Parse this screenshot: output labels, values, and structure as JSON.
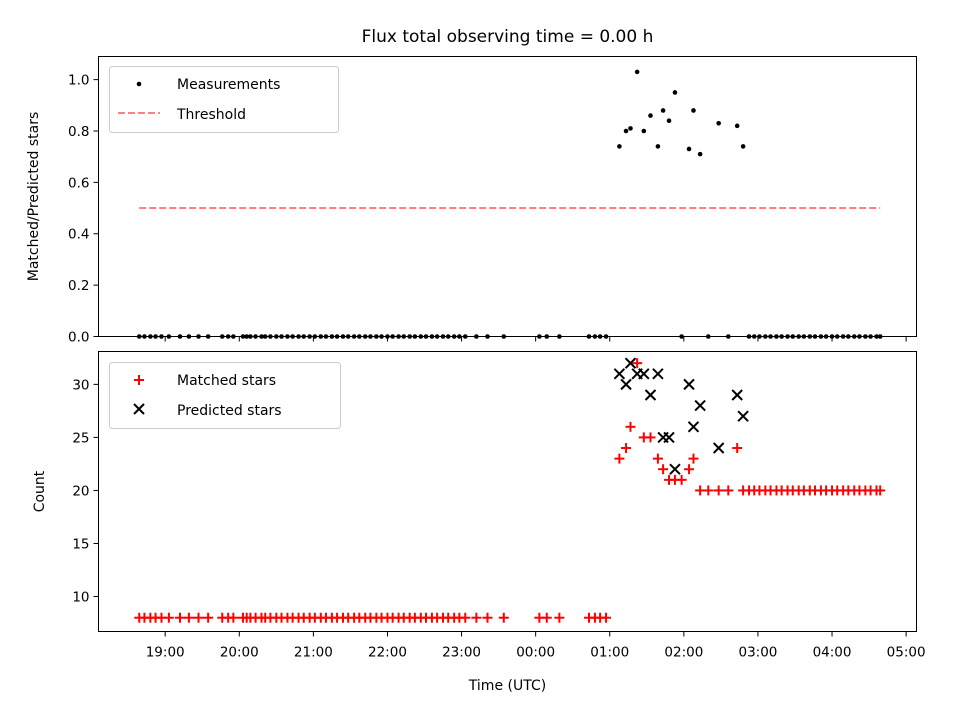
{
  "chart_data": {
    "type": "scatter",
    "title": "Flux total observing time = 0.00 h",
    "xlabel": "Time (UTC)",
    "x_unit": "hours since 18:00 UTC",
    "xlim": [
      18.1,
      29.14
    ],
    "xticks": [
      {
        "value": 19,
        "label": "19:00"
      },
      {
        "value": 20,
        "label": "20:00"
      },
      {
        "value": 21,
        "label": "21:00"
      },
      {
        "value": 22,
        "label": "22:00"
      },
      {
        "value": 23,
        "label": "23:00"
      },
      {
        "value": 24,
        "label": "00:00"
      },
      {
        "value": 25,
        "label": "01:00"
      },
      {
        "value": 26,
        "label": "02:00"
      },
      {
        "value": 27,
        "label": "03:00"
      },
      {
        "value": 28,
        "label": "04:00"
      },
      {
        "value": 29,
        "label": "05:00"
      }
    ],
    "top": {
      "ylabel": "Matched/Predicted stars",
      "ylim": [
        0.0,
        1.09
      ],
      "yticks": [
        "0.0",
        "0.2",
        "0.4",
        "0.6",
        "0.8",
        "1.0"
      ],
      "legend": {
        "location": "upper-left",
        "entries": [
          "Measurements",
          "Threshold"
        ]
      },
      "threshold": {
        "value": 0.5,
        "x_start": 18.65,
        "x_end": 28.65,
        "color": "#ff8080"
      },
      "measurements": {
        "color": "#000000",
        "x": [
          18.65,
          18.72,
          18.8,
          18.87,
          18.95,
          19.05,
          19.2,
          19.32,
          19.45,
          19.58,
          19.77,
          19.85,
          19.92,
          20.05,
          20.1,
          20.15,
          20.22,
          20.3,
          20.35,
          20.42,
          20.5,
          20.57,
          20.65,
          20.72,
          20.8,
          20.87,
          20.95,
          21.02,
          21.1,
          21.17,
          21.25,
          21.32,
          21.4,
          21.47,
          21.55,
          21.62,
          21.7,
          21.77,
          21.85,
          21.92,
          22.0,
          22.07,
          22.15,
          22.22,
          22.3,
          22.37,
          22.45,
          22.52,
          22.6,
          22.67,
          22.75,
          22.82,
          22.9,
          22.97,
          23.05,
          23.2,
          23.35,
          23.57,
          24.05,
          24.15,
          24.32,
          24.72,
          24.8,
          24.87,
          24.95,
          25.13,
          25.22,
          25.28,
          25.37,
          25.46,
          25.55,
          25.65,
          25.72,
          25.8,
          25.88,
          25.97,
          26.07,
          26.13,
          26.22,
          26.33,
          26.47,
          26.6,
          26.72,
          26.8,
          26.88,
          26.95,
          27.02,
          27.1,
          27.17,
          27.25,
          27.32,
          27.4,
          27.47,
          27.55,
          27.62,
          27.7,
          27.77,
          27.85,
          27.92,
          28.0,
          28.07,
          28.15,
          28.22,
          28.3,
          28.37,
          28.45,
          28.52,
          28.6,
          28.65
        ],
        "y": [
          0,
          0,
          0,
          0,
          0,
          0,
          0,
          0,
          0,
          0,
          0,
          0,
          0,
          0,
          0,
          0,
          0,
          0,
          0,
          0,
          0,
          0,
          0,
          0,
          0,
          0,
          0,
          0,
          0,
          0,
          0,
          0,
          0,
          0,
          0,
          0,
          0,
          0,
          0,
          0,
          0,
          0,
          0,
          0,
          0,
          0,
          0,
          0,
          0,
          0,
          0,
          0,
          0,
          0,
          0,
          0,
          0,
          0,
          0,
          0,
          0,
          0,
          0,
          0,
          0,
          0.74,
          0.8,
          0.81,
          1.03,
          0.8,
          0.86,
          0.74,
          0.88,
          0.84,
          0.95,
          0,
          0.73,
          0.88,
          0.71,
          0,
          0.83,
          0,
          0.82,
          0.74,
          0,
          0,
          0,
          0,
          0,
          0,
          0,
          0,
          0,
          0,
          0,
          0,
          0,
          0,
          0,
          0,
          0,
          0,
          0,
          0,
          0,
          0,
          0,
          0,
          0
        ]
      }
    },
    "bottom": {
      "ylabel": "Count",
      "ylim": [
        6.7,
        33.1
      ],
      "yticks": [
        "10",
        "15",
        "20",
        "25",
        "30"
      ],
      "legend": {
        "location": "upper-left",
        "entries": [
          "Matched stars",
          "Predicted stars"
        ]
      },
      "series": [
        {
          "name": "Matched stars",
          "marker": "plus",
          "color": "#ff0000",
          "x": [
            18.65,
            18.72,
            18.8,
            18.87,
            18.95,
            19.05,
            19.2,
            19.32,
            19.45,
            19.58,
            19.77,
            19.85,
            19.92,
            20.05,
            20.1,
            20.15,
            20.22,
            20.3,
            20.35,
            20.42,
            20.5,
            20.57,
            20.65,
            20.72,
            20.8,
            20.87,
            20.95,
            21.02,
            21.1,
            21.17,
            21.25,
            21.32,
            21.4,
            21.47,
            21.55,
            21.62,
            21.7,
            21.77,
            21.85,
            21.92,
            22.0,
            22.07,
            22.15,
            22.22,
            22.3,
            22.37,
            22.45,
            22.52,
            22.6,
            22.67,
            22.75,
            22.82,
            22.9,
            22.97,
            23.05,
            23.2,
            23.35,
            23.57,
            24.05,
            24.15,
            24.32,
            24.72,
            24.8,
            24.87,
            24.95,
            25.13,
            25.22,
            25.28,
            25.37,
            25.46,
            25.55,
            25.65,
            25.72,
            25.8,
            25.88,
            25.97,
            26.07,
            26.13,
            26.22,
            26.33,
            26.47,
            26.6,
            26.72,
            26.8,
            26.88,
            26.95,
            27.02,
            27.1,
            27.17,
            27.25,
            27.32,
            27.4,
            27.47,
            27.55,
            27.62,
            27.7,
            27.77,
            27.85,
            27.92,
            28.0,
            28.07,
            28.15,
            28.22,
            28.3,
            28.37,
            28.45,
            28.52,
            28.6,
            28.65
          ],
          "y": [
            8,
            8,
            8,
            8,
            8,
            8,
            8,
            8,
            8,
            8,
            8,
            8,
            8,
            8,
            8,
            8,
            8,
            8,
            8,
            8,
            8,
            8,
            8,
            8,
            8,
            8,
            8,
            8,
            8,
            8,
            8,
            8,
            8,
            8,
            8,
            8,
            8,
            8,
            8,
            8,
            8,
            8,
            8,
            8,
            8,
            8,
            8,
            8,
            8,
            8,
            8,
            8,
            8,
            8,
            8,
            8,
            8,
            8,
            8,
            8,
            8,
            8,
            8,
            8,
            8,
            23,
            24,
            26,
            32,
            25,
            25,
            23,
            22,
            21,
            21,
            21,
            22,
            23,
            20,
            20,
            20,
            20,
            24,
            20,
            20,
            20,
            20,
            20,
            20,
            20,
            20,
            20,
            20,
            20,
            20,
            20,
            20,
            20,
            20,
            20,
            20,
            20,
            20,
            20,
            20,
            20,
            20,
            20,
            20
          ]
        },
        {
          "name": "Predicted stars",
          "marker": "cross",
          "color": "#000000",
          "x": [
            25.13,
            25.22,
            25.28,
            25.37,
            25.46,
            25.55,
            25.65,
            25.72,
            25.8,
            25.88,
            26.07,
            26.13,
            26.22,
            26.47,
            26.72,
            26.8
          ],
          "y": [
            31,
            30,
            32,
            31,
            31,
            29,
            31,
            25,
            25,
            22,
            30,
            26,
            28,
            24,
            29,
            27
          ]
        }
      ]
    }
  }
}
